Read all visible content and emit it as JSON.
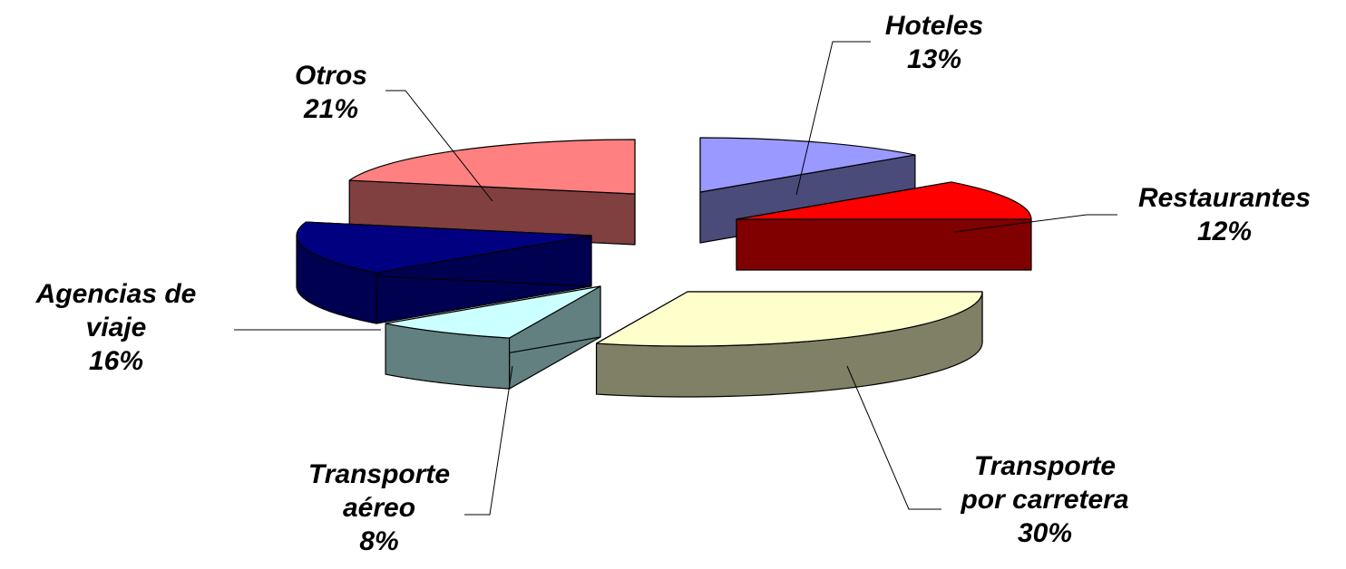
{
  "chart_data": {
    "type": "pie",
    "variant": "exploded-3d",
    "title": "",
    "slices": [
      {
        "label_lines": [
          "Hoteles",
          "13%"
        ],
        "value": 13,
        "color": "#9999FF",
        "side_color": "#4B4B7A"
      },
      {
        "label_lines": [
          "Restaurantes",
          "12%"
        ],
        "value": 12,
        "color": "#FF0000",
        "side_color": "#800000"
      },
      {
        "label_lines": [
          "Transporte",
          "por carretera",
          "30%"
        ],
        "value": 30,
        "color": "#FFFFCC",
        "side_color": "#808066"
      },
      {
        "label_lines": [
          "Transporte",
          "aéreo",
          "8%"
        ],
        "value": 8,
        "color": "#CCFFFF",
        "side_color": "#628080"
      },
      {
        "label_lines": [
          "Agencias de",
          "viaje",
          "16%"
        ],
        "value": 16,
        "color": "#000080",
        "side_color": "#000050"
      },
      {
        "label_lines": [
          "Otros",
          "21%"
        ],
        "value": 21,
        "color": "#FF8080",
        "side_color": "#804040"
      }
    ]
  }
}
